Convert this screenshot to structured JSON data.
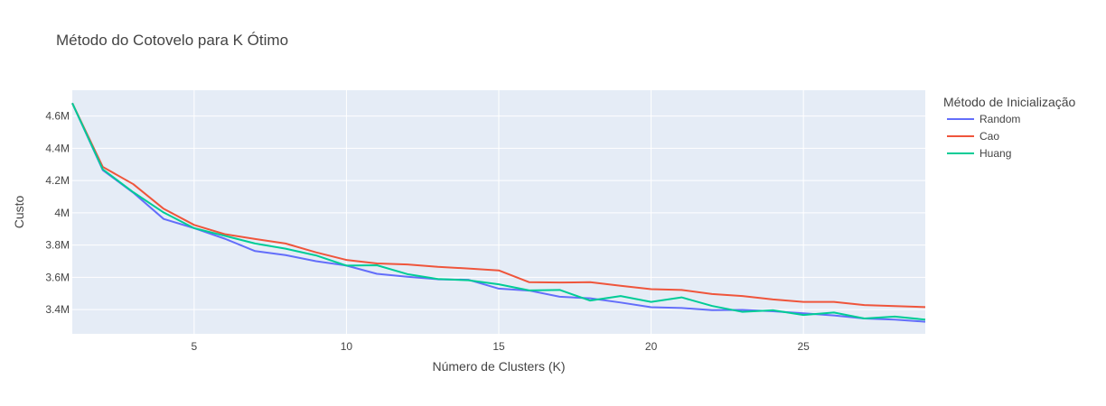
{
  "chart_data": {
    "type": "line",
    "title": "Método do Cotovelo para K Ótimo",
    "xlabel": "Número de Clusters (K)",
    "ylabel": "Custo",
    "xlim": [
      1,
      29
    ],
    "ylim": [
      3250000,
      4760000
    ],
    "x_ticks": [
      {
        "value": 5,
        "label": "5"
      },
      {
        "value": 10,
        "label": "10"
      },
      {
        "value": 15,
        "label": "15"
      },
      {
        "value": 20,
        "label": "20"
      },
      {
        "value": 25,
        "label": "25"
      }
    ],
    "y_ticks": [
      {
        "value": 3400000,
        "label": "3.4M"
      },
      {
        "value": 3600000,
        "label": "3.6M"
      },
      {
        "value": 3800000,
        "label": "3.8M"
      },
      {
        "value": 4000000,
        "label": "4M"
      },
      {
        "value": 4200000,
        "label": "4.2M"
      },
      {
        "value": 4400000,
        "label": "4.4M"
      },
      {
        "value": 4600000,
        "label": "4.6M"
      }
    ],
    "grid": true,
    "legend": {
      "title": "Método de Inicialização",
      "position": "right"
    },
    "x": [
      1,
      2,
      3,
      4,
      5,
      6,
      7,
      8,
      9,
      10,
      11,
      12,
      13,
      14,
      15,
      16,
      17,
      18,
      19,
      20,
      21,
      22,
      23,
      24,
      25,
      26,
      27,
      28,
      29
    ],
    "series": [
      {
        "name": "Random",
        "color": "#636efa",
        "values": [
          4680000,
          4265000,
          4125000,
          3962000,
          3905000,
          3840000,
          3763000,
          3738000,
          3700000,
          3673000,
          3622000,
          3604000,
          3588000,
          3585000,
          3530000,
          3518000,
          3480000,
          3470000,
          3444000,
          3415000,
          3410000,
          3397000,
          3398000,
          3390000,
          3377000,
          3364000,
          3345000,
          3338000,
          3325000
        ]
      },
      {
        "name": "Cao",
        "color": "#ef553b",
        "values": [
          4680000,
          4285000,
          4178000,
          4025000,
          3925000,
          3868000,
          3838000,
          3810000,
          3755000,
          3708000,
          3686000,
          3680000,
          3665000,
          3655000,
          3643000,
          3570000,
          3568000,
          3570000,
          3548000,
          3527000,
          3522000,
          3497000,
          3484000,
          3463000,
          3448000,
          3448000,
          3428000,
          3422000,
          3416000
        ]
      },
      {
        "name": "Huang",
        "color": "#00cc96",
        "values": [
          4680000,
          4270000,
          4128000,
          4002000,
          3905000,
          3858000,
          3810000,
          3778000,
          3736000,
          3673000,
          3675000,
          3620000,
          3590000,
          3582000,
          3557000,
          3519000,
          3522000,
          3456000,
          3484000,
          3448000,
          3476000,
          3423000,
          3386000,
          3396000,
          3367000,
          3382000,
          3345000,
          3357000,
          3338000
        ]
      }
    ]
  }
}
